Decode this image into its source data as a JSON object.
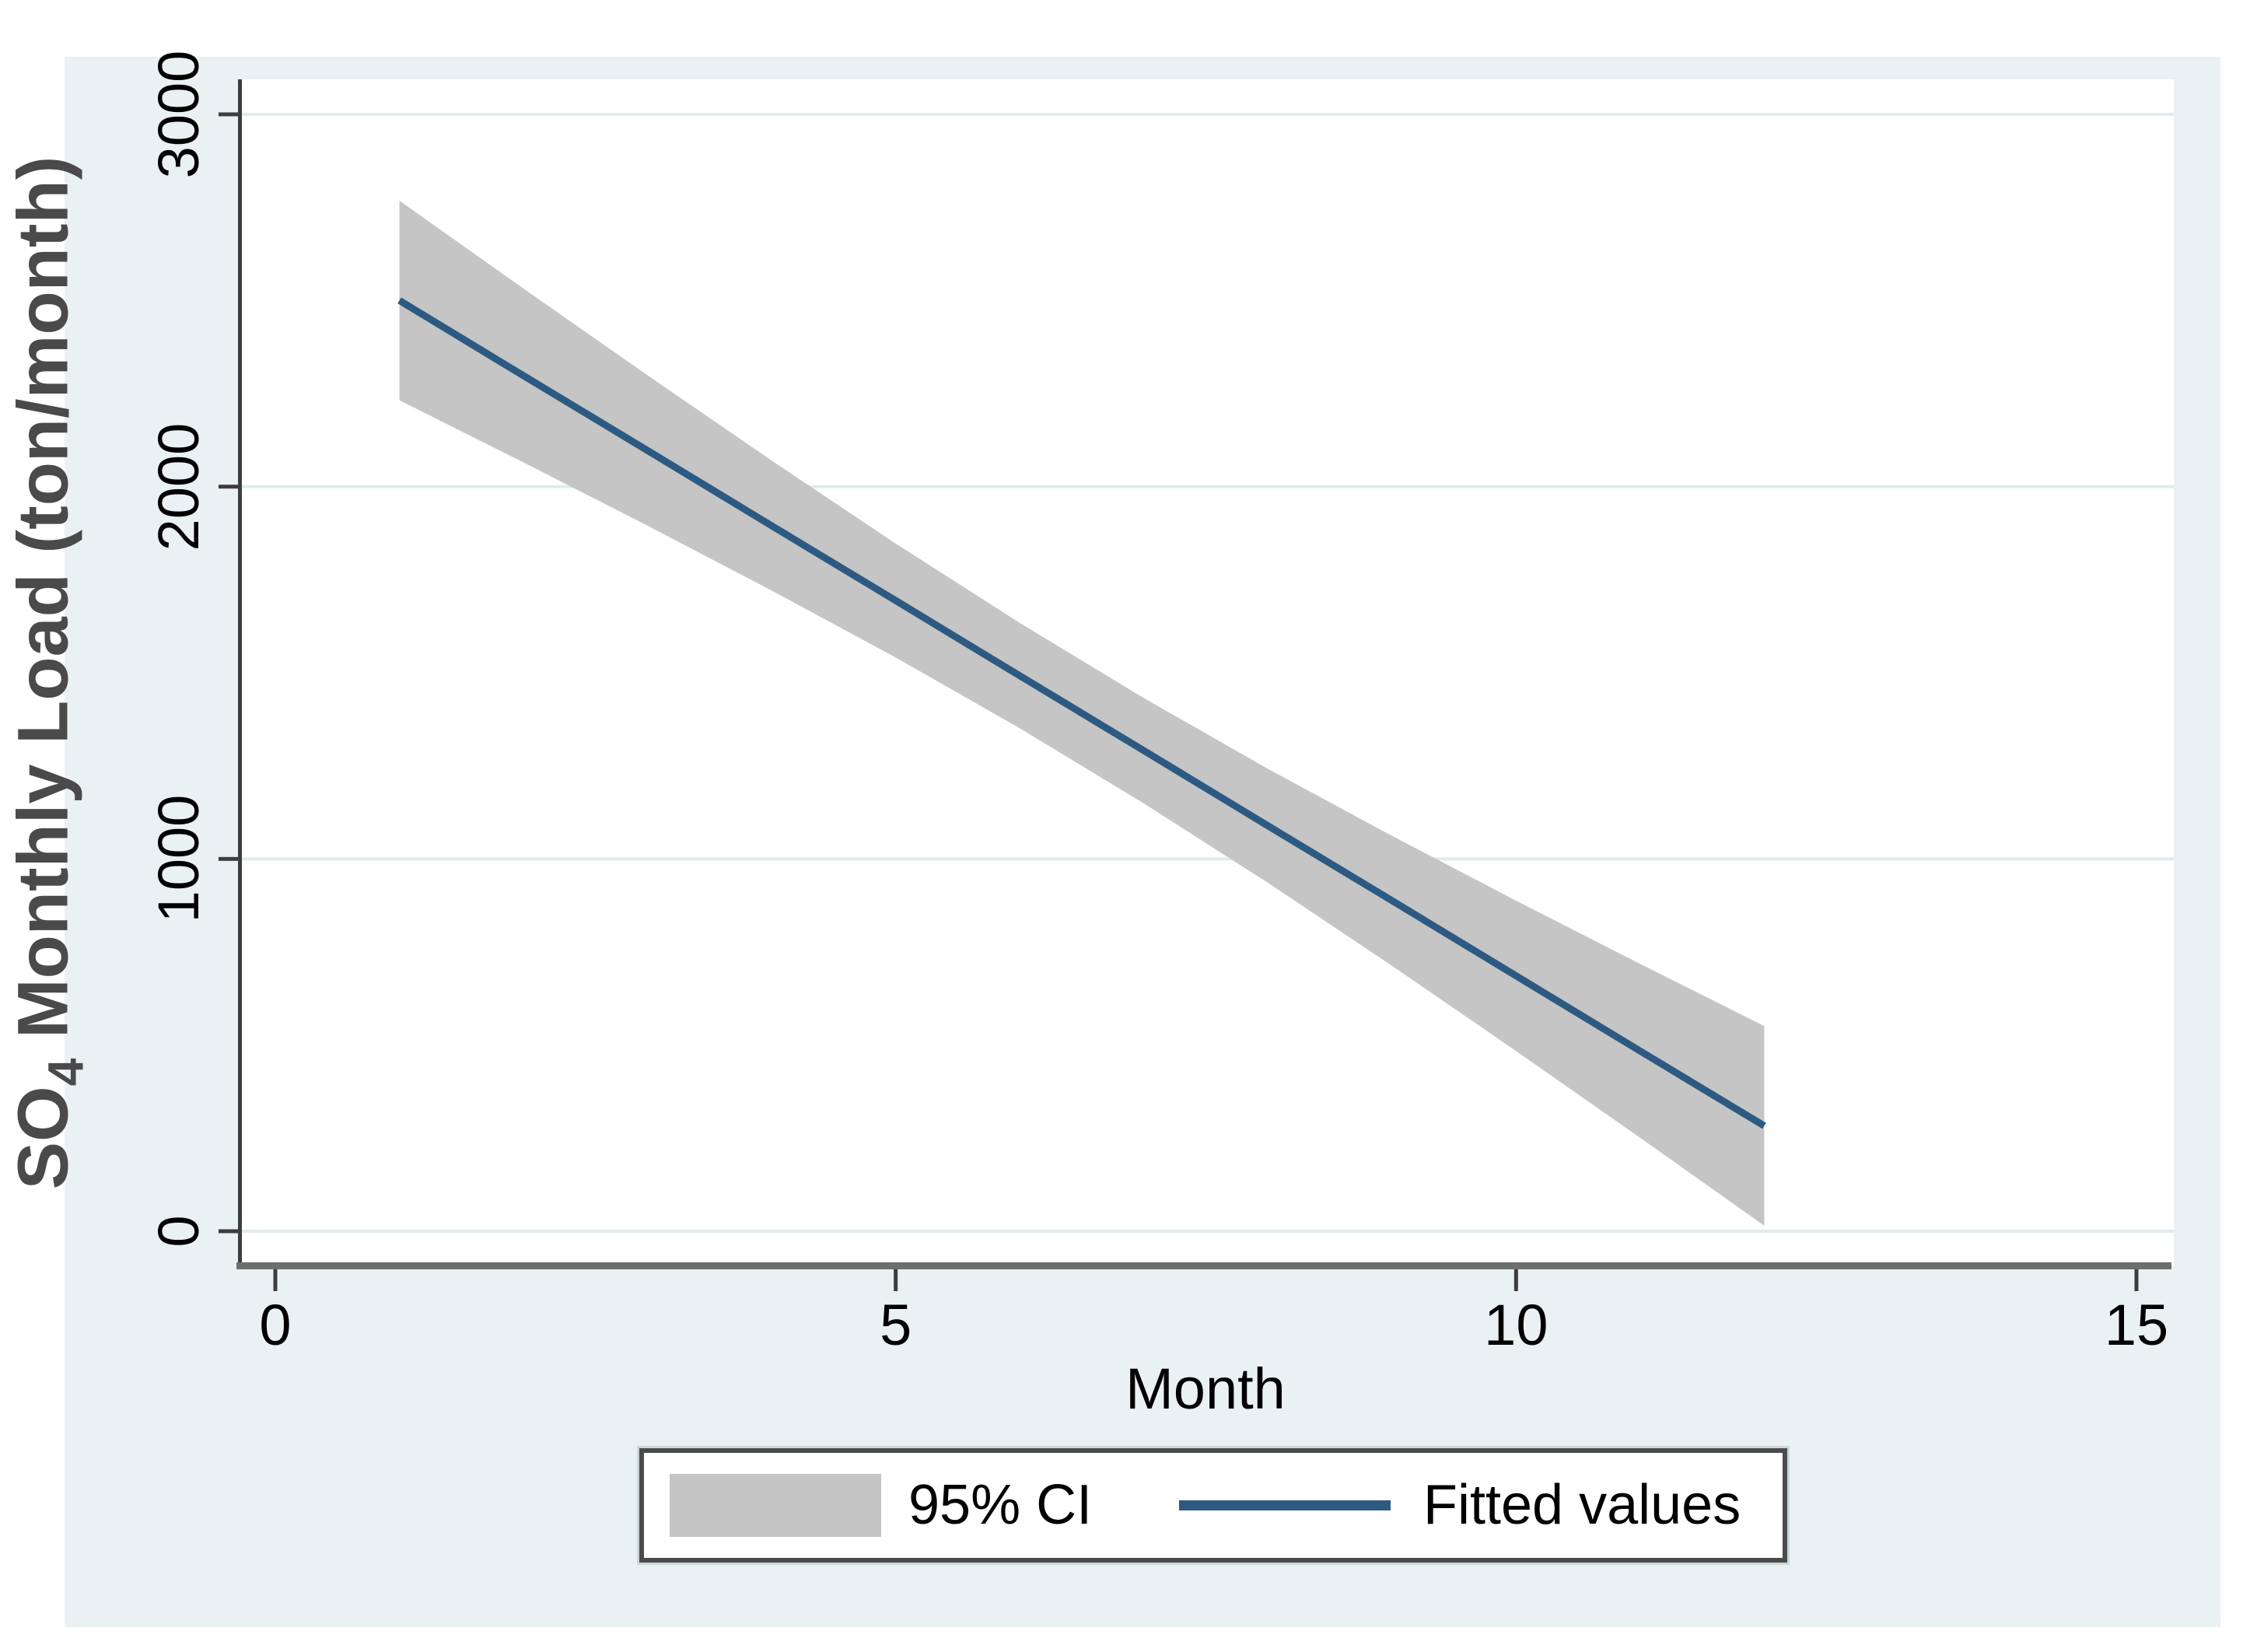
{
  "figure": {
    "background_color": "#eaf1f3",
    "plot_background": "#ffffff",
    "gridline_color": "#e2ebee"
  },
  "axes": {
    "x": {
      "title": "Month",
      "range": [
        0,
        15
      ],
      "ticks": [
        "0",
        "5",
        "10",
        "15"
      ],
      "tick_values": [
        0,
        5,
        10,
        15
      ]
    },
    "y": {
      "title_prefix": "SO",
      "title_subscript": "4",
      "title_rest": " Monthly Load (ton/month)",
      "range": [
        0,
        3000
      ],
      "ticks": [
        "0",
        "1000",
        "2000",
        "3000"
      ],
      "tick_values": [
        0,
        1000,
        2000,
        3000
      ]
    }
  },
  "legend": {
    "items": [
      {
        "label": "95% CI",
        "swatch_type": "band",
        "color": "#c5c5c5"
      },
      {
        "label": "Fitted values",
        "swatch_type": "line",
        "color": "#2d5a82"
      }
    ]
  },
  "chart_data": {
    "type": "line",
    "title": "",
    "xlabel": "Month",
    "ylabel": "SO4 Monthly Load (ton/month)",
    "xlim": [
      0,
      15
    ],
    "ylim": [
      0,
      3000
    ],
    "xticks": [
      0,
      5,
      10,
      15
    ],
    "yticks": [
      0,
      1000,
      2000,
      3000
    ],
    "grid": "horizontal",
    "legend_position": "bottom-center",
    "x": [
      1,
      2,
      3,
      4,
      5,
      6,
      7,
      8,
      9,
      10,
      11,
      12
    ],
    "series": [
      {
        "name": "Fitted values",
        "kind": "line",
        "color": "#2d5a82",
        "values": [
          2500,
          2298,
          2097,
          1895,
          1694,
          1492,
          1291,
          1089,
          888,
          686,
          484,
          283
        ]
      },
      {
        "name": "95% CI",
        "kind": "band",
        "color": "#c5c5c5",
        "upper": [
          2768,
          2532,
          2299,
          2070,
          1847,
          1634,
          1432,
          1242,
          1062,
          888,
          718,
          551
        ],
        "lower": [
          2232,
          2065,
          1895,
          1721,
          1541,
          1351,
          1149,
          936,
          713,
          484,
          251,
          15
        ]
      }
    ]
  }
}
